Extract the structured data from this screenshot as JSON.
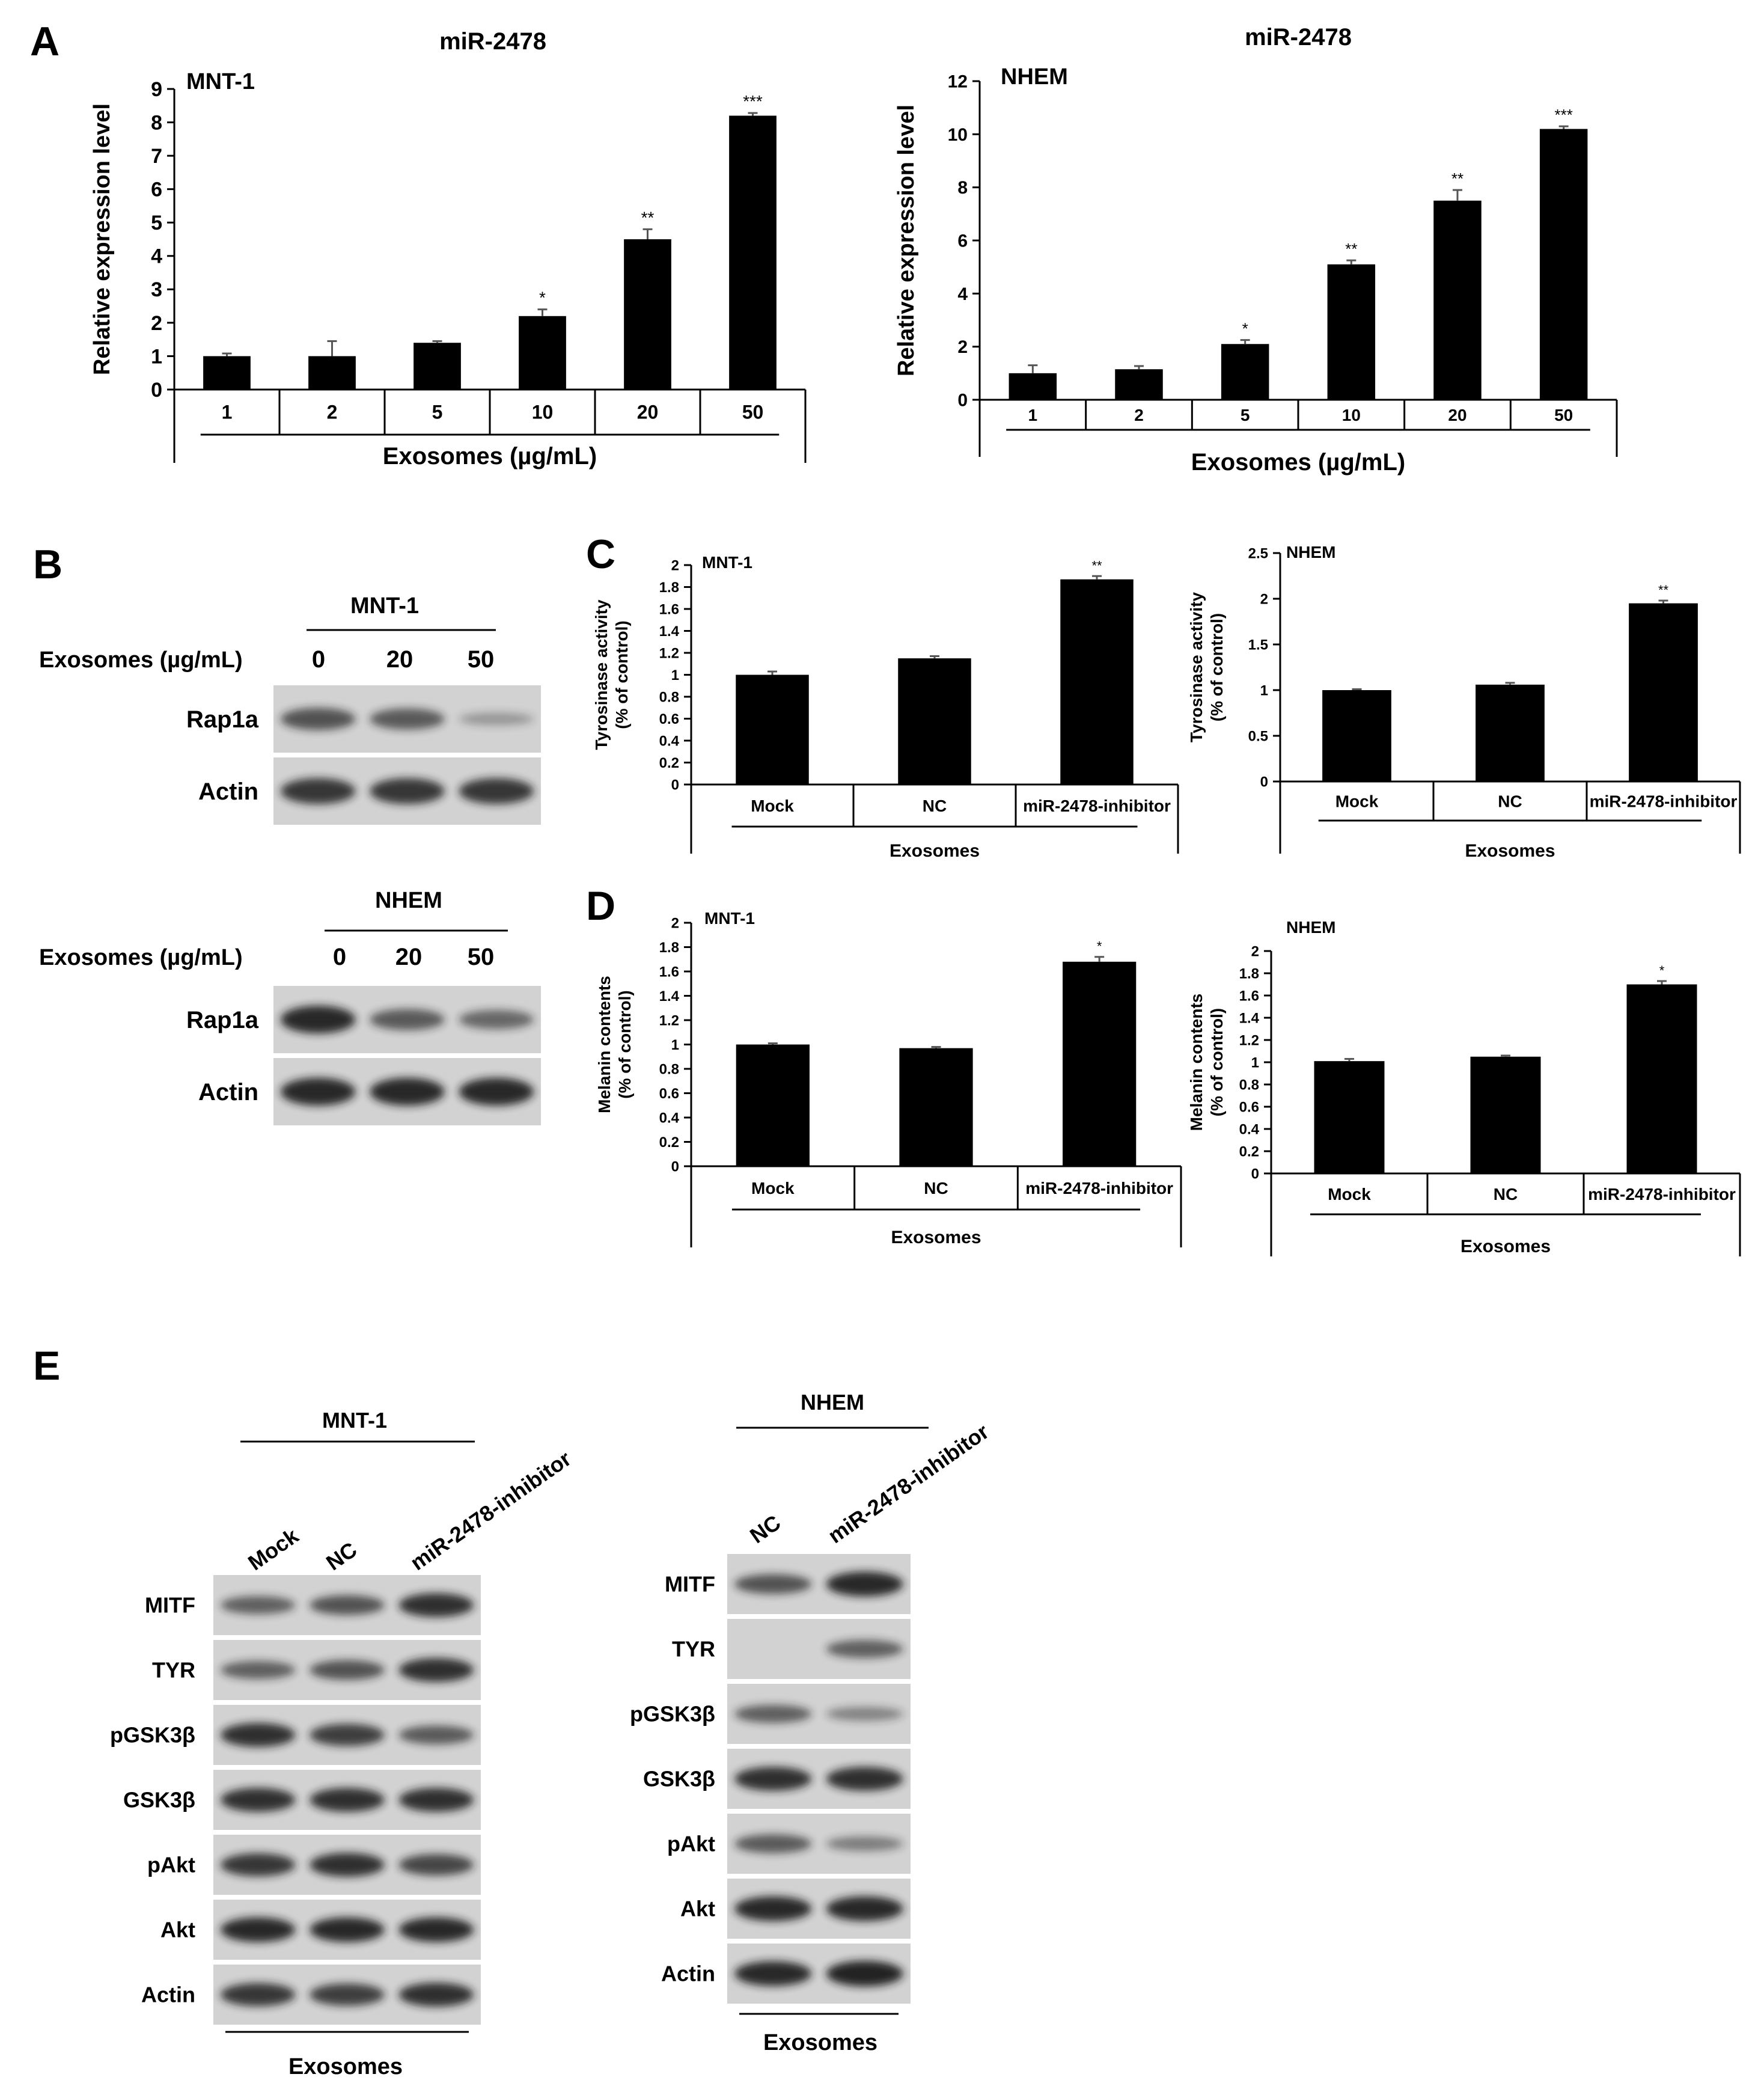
{
  "panels": {
    "A": {
      "letter": "A"
    },
    "B": {
      "letter": "B"
    },
    "C": {
      "letter": "C"
    },
    "D": {
      "letter": "D"
    },
    "E": {
      "letter": "E"
    }
  },
  "chart_data": [
    {
      "id": "A_MNT1",
      "type": "bar",
      "panel": "A",
      "title": "miR-2478",
      "cell_label": "MNT-1",
      "ylabel": "Relative expression level",
      "xlabel": "Exosomes (µg/mL)",
      "categories": [
        "1",
        "2",
        "5",
        "10",
        "20",
        "50"
      ],
      "values": [
        1.0,
        1.0,
        1.4,
        2.2,
        4.5,
        8.2
      ],
      "errors": [
        0.08,
        0.45,
        0.05,
        0.2,
        0.3,
        0.08
      ],
      "significance": [
        "",
        "",
        "",
        "*",
        "**",
        "***"
      ],
      "ylim": [
        0,
        9
      ],
      "yticks": [
        "0",
        "1",
        "2",
        "3",
        "4",
        "5",
        "6",
        "7",
        "8",
        "9"
      ]
    },
    {
      "id": "A_NHEM",
      "type": "bar",
      "panel": "A",
      "title": "miR-2478",
      "cell_label": "NHEM",
      "ylabel": "Relative expression level",
      "xlabel": "Exosomes (µg/mL)",
      "categories": [
        "1",
        "2",
        "5",
        "10",
        "20",
        "50"
      ],
      "values": [
        1.0,
        1.15,
        2.1,
        5.1,
        7.5,
        10.2
      ],
      "errors": [
        0.3,
        0.12,
        0.15,
        0.15,
        0.4,
        0.1
      ],
      "significance": [
        "",
        "",
        "*",
        "**",
        "**",
        "***"
      ],
      "ylim": [
        0,
        12
      ],
      "yticks": [
        "0",
        "2",
        "4",
        "6",
        "8",
        "10",
        "12"
      ]
    },
    {
      "id": "C_MNT1",
      "type": "bar",
      "panel": "C",
      "cell_label": "MNT-1",
      "ylabel": [
        "Tyrosinase activity",
        "(% of control)"
      ],
      "xlabel": "Exosomes",
      "categories": [
        "Mock",
        "NC",
        "miR-2478-inhibitor"
      ],
      "values": [
        1.0,
        1.15,
        1.87
      ],
      "errors": [
        0.03,
        0.02,
        0.03
      ],
      "significance": [
        "",
        "",
        "**"
      ],
      "ylim": [
        0,
        2
      ],
      "yticks": [
        "0",
        "0.2",
        "0.4",
        "0.6",
        "0.8",
        "1",
        "1.2",
        "1.4",
        "1.6",
        "1.8",
        "2"
      ]
    },
    {
      "id": "C_NHEM",
      "type": "bar",
      "panel": "C",
      "cell_label": "NHEM",
      "ylabel": [
        "Tyrosinase activity",
        "(% of control)"
      ],
      "xlabel": "Exosomes",
      "categories": [
        "Mock",
        "NC",
        "miR-2478-inhibitor"
      ],
      "values": [
        1.0,
        1.06,
        1.95
      ],
      "errors": [
        0.01,
        0.02,
        0.03
      ],
      "significance": [
        "",
        "",
        "**"
      ],
      "ylim": [
        0,
        2.5
      ],
      "yticks": [
        "0",
        "0.5",
        "1",
        "1.5",
        "2",
        "2.5"
      ]
    },
    {
      "id": "D_MNT1",
      "type": "bar",
      "panel": "D",
      "cell_label": "MNT-1",
      "ylabel": [
        "Melanin contents",
        "(% of control)"
      ],
      "xlabel": "Exosomes",
      "categories": [
        "Mock",
        "NC",
        "miR-2478-inhibitor"
      ],
      "values": [
        1.0,
        0.97,
        1.68
      ],
      "errors": [
        0.01,
        0.01,
        0.04
      ],
      "significance": [
        "",
        "",
        "*"
      ],
      "ylim": [
        0,
        2
      ],
      "yticks": [
        "0",
        "0.2",
        "0.4",
        "0.6",
        "0.8",
        "1",
        "1.2",
        "1.4",
        "1.6",
        "1.8",
        "2"
      ]
    },
    {
      "id": "D_NHEM",
      "type": "bar",
      "panel": "D",
      "cell_label": "NHEM",
      "ylabel": [
        "Melanin contents",
        "(% of control)"
      ],
      "xlabel": "Exosomes",
      "categories": [
        "Mock",
        "NC",
        "miR-2478-inhibitor"
      ],
      "values": [
        1.01,
        1.05,
        1.7
      ],
      "errors": [
        0.02,
        0.01,
        0.03
      ],
      "significance": [
        "",
        "",
        "*"
      ],
      "ylim": [
        0,
        2
      ],
      "yticks": [
        "0",
        "0.2",
        "0.4",
        "0.6",
        "0.8",
        "1",
        "1.2",
        "1.4",
        "1.6",
        "1.8",
        "2"
      ]
    }
  ],
  "blots": {
    "B_MNT1": {
      "cell_label": "MNT-1",
      "row_header": "Exosomes (µg/mL)",
      "lanes": [
        "0",
        "20",
        "50"
      ],
      "rows": [
        {
          "name": "Rap1a",
          "bands": [
            0.6,
            0.55,
            0.1
          ]
        },
        {
          "name": "Actin",
          "bands": [
            0.8,
            0.8,
            0.8
          ]
        }
      ]
    },
    "B_NHEM": {
      "cell_label": "NHEM",
      "row_header": "Exosomes (µg/mL)",
      "lanes": [
        "0",
        "20",
        "50"
      ],
      "rows": [
        {
          "name": "Rap1a",
          "bands": [
            0.9,
            0.55,
            0.45
          ]
        },
        {
          "name": "Actin",
          "bands": [
            0.9,
            0.9,
            0.9
          ]
        }
      ]
    },
    "E_MNT1": {
      "cell_label": "MNT-1",
      "footer": "Exosomes",
      "lanes": [
        "Mock",
        "NC",
        "miR-2478-inhibitor"
      ],
      "rows": [
        {
          "name": "MITF",
          "bands": [
            0.5,
            0.6,
            0.85
          ]
        },
        {
          "name": "TYR",
          "bands": [
            0.5,
            0.6,
            0.85
          ]
        },
        {
          "name": "pGSK3β",
          "bands": [
            0.85,
            0.75,
            0.55
          ]
        },
        {
          "name": "GSK3β",
          "bands": [
            0.85,
            0.85,
            0.85
          ]
        },
        {
          "name": "pAkt",
          "bands": [
            0.8,
            0.85,
            0.7
          ]
        },
        {
          "name": "Akt",
          "bands": [
            0.9,
            0.9,
            0.9
          ]
        },
        {
          "name": "Actin",
          "bands": [
            0.8,
            0.75,
            0.85
          ]
        }
      ]
    },
    "E_NHEM": {
      "cell_label": "NHEM",
      "footer": "Exosomes",
      "lanes": [
        "NC",
        "miR-2478-inhibitor"
      ],
      "rows": [
        {
          "name": "MITF",
          "bands": [
            0.6,
            0.9
          ]
        },
        {
          "name": "TYR",
          "bands": [
            0.0,
            0.5
          ]
        },
        {
          "name": "pGSK3β",
          "bands": [
            0.5,
            0.25
          ]
        },
        {
          "name": "GSK3β",
          "bands": [
            0.85,
            0.85
          ]
        },
        {
          "name": "pAkt",
          "bands": [
            0.55,
            0.3
          ]
        },
        {
          "name": "Akt",
          "bands": [
            0.9,
            0.9
          ]
        },
        {
          "name": "Actin",
          "bands": [
            0.9,
            0.95
          ]
        }
      ]
    }
  },
  "colors": {
    "bar": "#000000",
    "axis": "#000000",
    "blot_bg": "#d2d2d2",
    "band": "#1a1a1a"
  }
}
